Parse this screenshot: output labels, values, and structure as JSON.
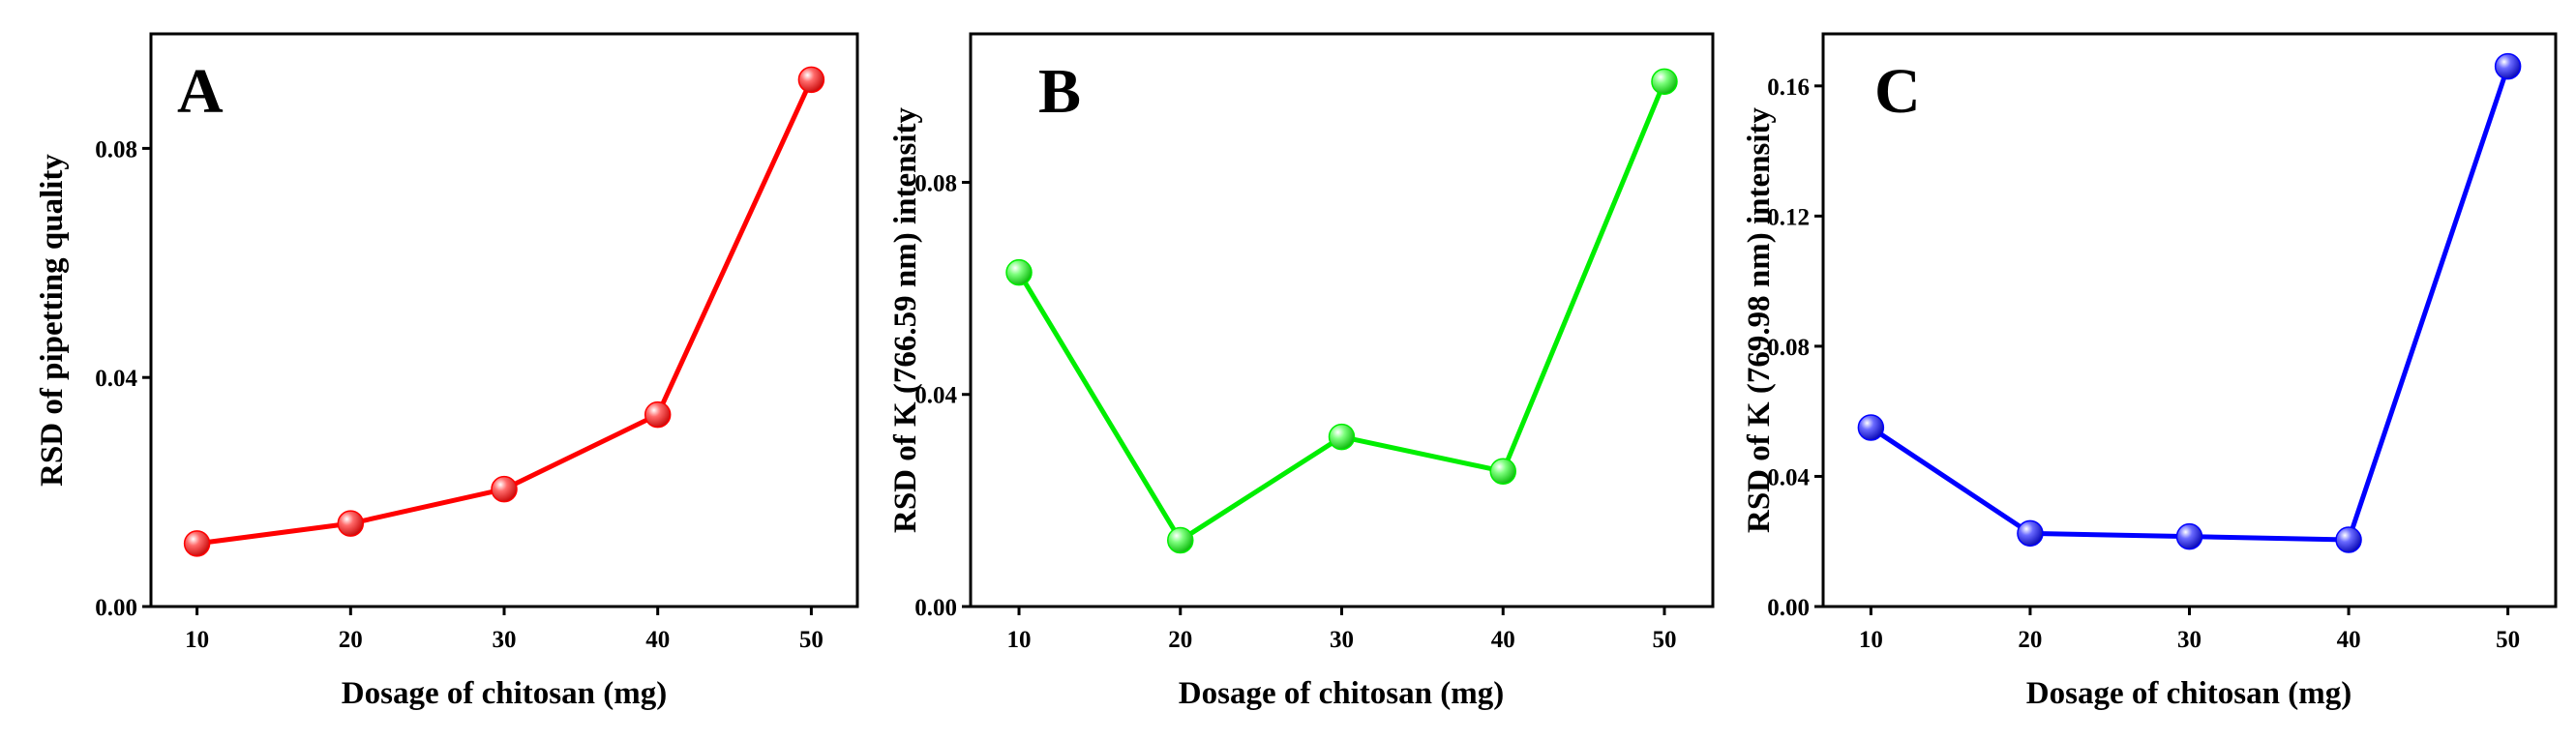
{
  "chart_data": [
    {
      "type": "line",
      "panel_label": "A",
      "title": "",
      "xlabel": "Dosage of chitosan (mg)",
      "ylabel": "RSD of pipetting quality",
      "x": [
        10,
        20,
        30,
        40,
        50
      ],
      "series": [
        {
          "name": "RSD of pipetting quality",
          "values": [
            0.011,
            0.0145,
            0.0205,
            0.0335,
            0.092
          ]
        }
      ],
      "xlim": [
        7,
        53
      ],
      "ylim": [
        0,
        0.1
      ],
      "xticks": [
        10,
        20,
        30,
        40,
        50
      ],
      "xtick_labels": [
        "10",
        "20",
        "30",
        "40",
        "50"
      ],
      "yticks": [
        0,
        0.04,
        0.08
      ],
      "ytick_labels": [
        "0.00",
        "0.04",
        "0.08"
      ],
      "color": "#ff0000",
      "grid": false
    },
    {
      "type": "line",
      "panel_label": "B",
      "title": "",
      "xlabel": "Dosage of chitosan (mg)",
      "ylabel": "RSD of K (766.59 nm) intensity",
      "x": [
        10,
        20,
        30,
        40,
        50
      ],
      "series": [
        {
          "name": "RSD of K (766.59 nm) intensity",
          "values": [
            0.063,
            0.0125,
            0.032,
            0.0255,
            0.099
          ]
        }
      ],
      "xlim": [
        7,
        53
      ],
      "ylim": [
        0,
        0.108
      ],
      "xticks": [
        10,
        20,
        30,
        40,
        50
      ],
      "xtick_labels": [
        "10",
        "20",
        "30",
        "40",
        "50"
      ],
      "yticks": [
        0,
        0.04,
        0.08
      ],
      "ytick_labels": [
        "0.00",
        "0.04",
        "0.08"
      ],
      "color": "#00ee00",
      "grid": false
    },
    {
      "type": "line",
      "panel_label": "C",
      "title": "",
      "xlabel": "Dosage of chitosan (mg)",
      "ylabel": "RSD of K (769.98 nm) intensity",
      "x": [
        10,
        20,
        30,
        40,
        50
      ],
      "series": [
        {
          "name": "RSD of K (769.98 nm) intensity",
          "values": [
            0.055,
            0.0225,
            0.0215,
            0.0205,
            0.166
          ]
        }
      ],
      "xlim": [
        7,
        53
      ],
      "ylim": [
        0,
        0.176
      ],
      "xticks": [
        10,
        20,
        30,
        40,
        50
      ],
      "xtick_labels": [
        "10",
        "20",
        "30",
        "40",
        "50"
      ],
      "yticks": [
        0,
        0.04,
        0.08,
        0.12,
        0.16
      ],
      "ytick_labels": [
        "0.00",
        "0.04",
        "0.08",
        "0.12",
        "0.16"
      ],
      "color": "#0000ff",
      "grid": false
    }
  ]
}
